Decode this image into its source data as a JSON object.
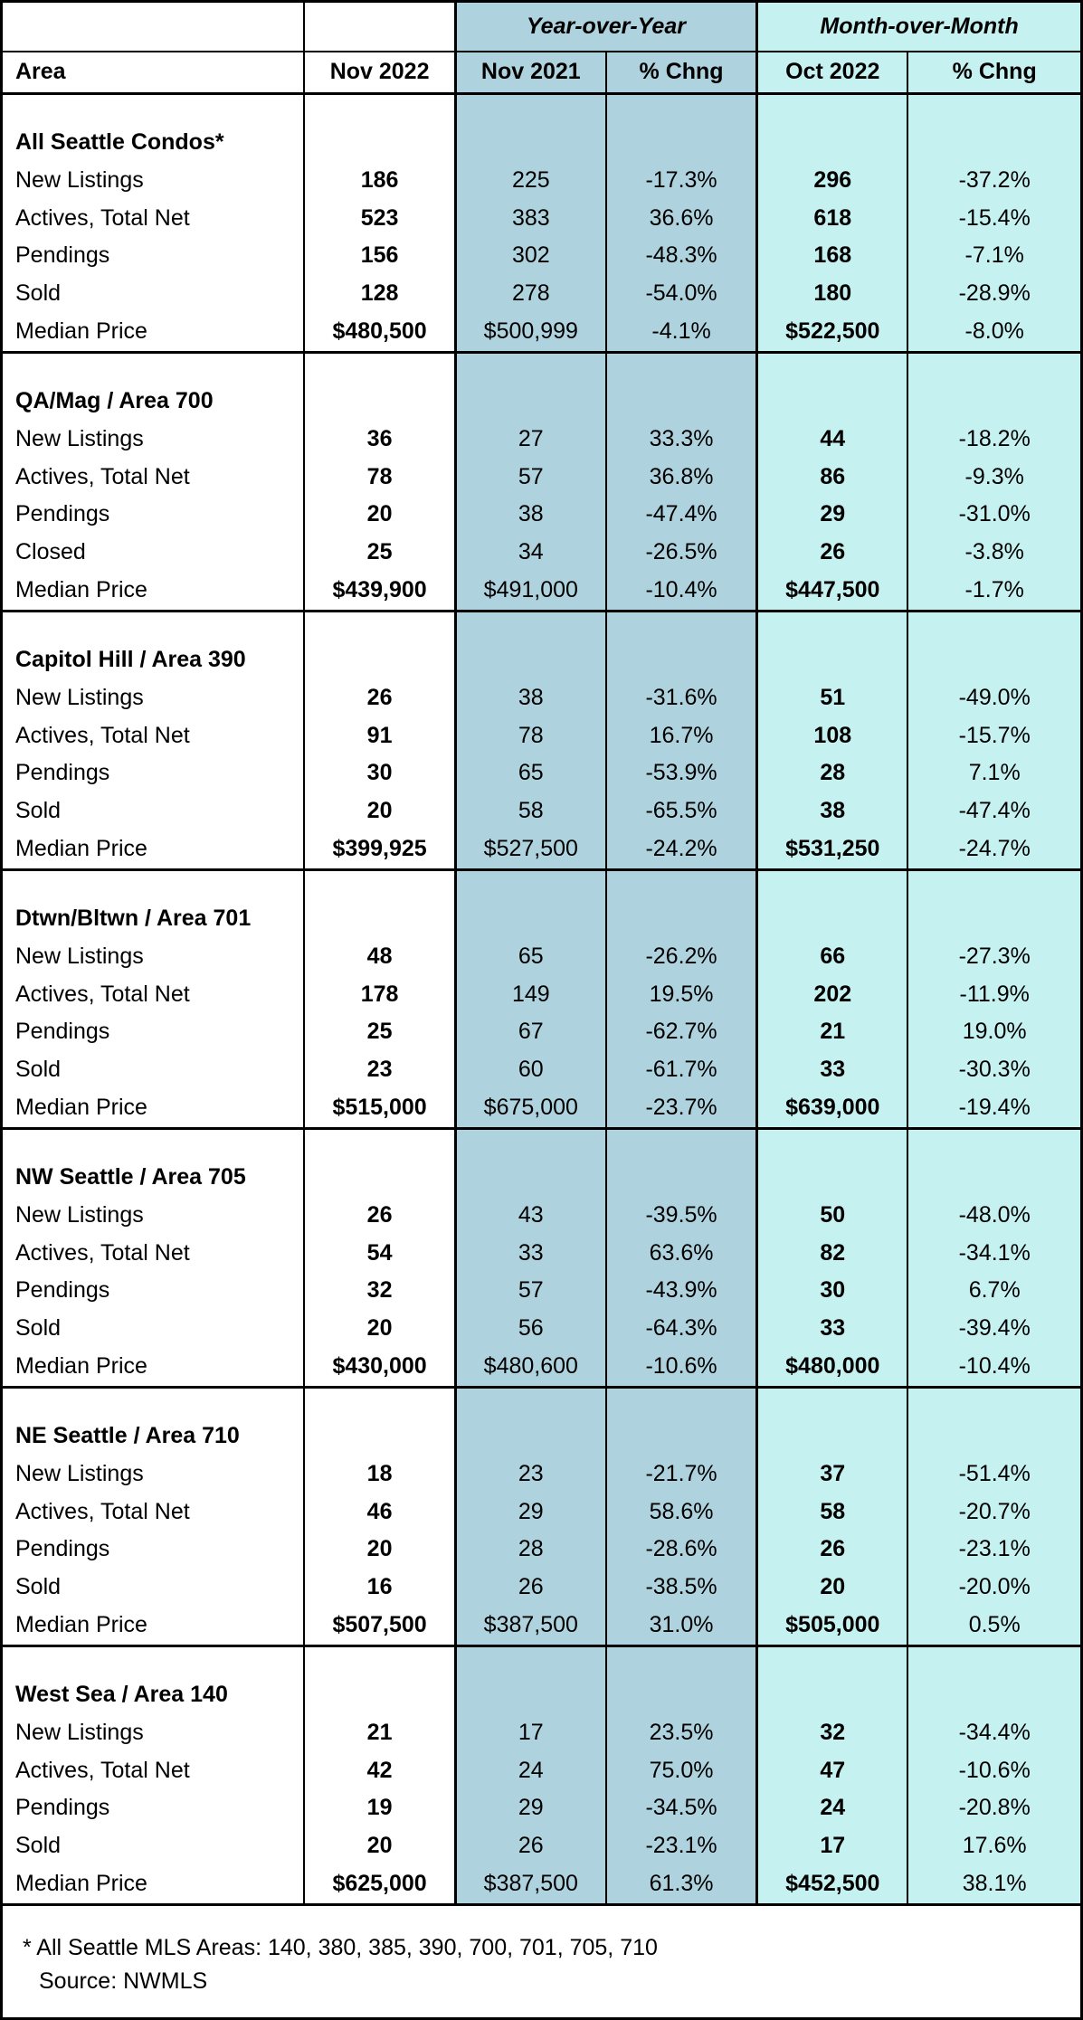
{
  "colors": {
    "yoy_bg": "#aed3de",
    "mom_bg": "#c6f1f1",
    "border": "#000000",
    "text": "#000000",
    "page_bg": "#ffffff"
  },
  "headers": {
    "yoy_group": "Year-over-Year",
    "mom_group": "Month-over-Month",
    "area": "Area",
    "nov2022": "Nov 2022",
    "nov2021": "Nov 2021",
    "pct_chng_yoy": "% Chng",
    "oct2022": "Oct 2022",
    "pct_chng_mom": "% Chng"
  },
  "sections": [
    {
      "title": "All Seattle Condos*",
      "rows": [
        {
          "label": "New Listings",
          "nov2022": "186",
          "nov2021": "225",
          "yoy": "-17.3%",
          "oct2022": "296",
          "mom": "-37.2%"
        },
        {
          "label": "Actives, Total Net",
          "nov2022": "523",
          "nov2021": "383",
          "yoy": "36.6%",
          "oct2022": "618",
          "mom": "-15.4%"
        },
        {
          "label": "Pendings",
          "nov2022": "156",
          "nov2021": "302",
          "yoy": "-48.3%",
          "oct2022": "168",
          "mom": "-7.1%"
        },
        {
          "label": "Sold",
          "nov2022": "128",
          "nov2021": "278",
          "yoy": "-54.0%",
          "oct2022": "180",
          "mom": "-28.9%"
        },
        {
          "label": "Median Price",
          "nov2022": "$480,500",
          "nov2021": "$500,999",
          "yoy": "-4.1%",
          "oct2022": "$522,500",
          "mom": "-8.0%"
        }
      ]
    },
    {
      "title": "QA/Mag  / Area 700",
      "rows": [
        {
          "label": "New Listings",
          "nov2022": "36",
          "nov2021": "27",
          "yoy": "33.3%",
          "oct2022": "44",
          "mom": "-18.2%"
        },
        {
          "label": "Actives, Total Net",
          "nov2022": "78",
          "nov2021": "57",
          "yoy": "36.8%",
          "oct2022": "86",
          "mom": "-9.3%"
        },
        {
          "label": "Pendings",
          "nov2022": "20",
          "nov2021": "38",
          "yoy": "-47.4%",
          "oct2022": "29",
          "mom": "-31.0%"
        },
        {
          "label": "Closed",
          "nov2022": "25",
          "nov2021": "34",
          "yoy": "-26.5%",
          "oct2022": "26",
          "mom": "-3.8%"
        },
        {
          "label": "Median Price",
          "nov2022": "$439,900",
          "nov2021": "$491,000",
          "yoy": "-10.4%",
          "oct2022": "$447,500",
          "mom": "-1.7%"
        }
      ]
    },
    {
      "title": "Capitol Hill / Area 390",
      "rows": [
        {
          "label": "New Listings",
          "nov2022": "26",
          "nov2021": "38",
          "yoy": "-31.6%",
          "oct2022": "51",
          "mom": "-49.0%"
        },
        {
          "label": "Actives, Total Net",
          "nov2022": "91",
          "nov2021": "78",
          "yoy": "16.7%",
          "oct2022": "108",
          "mom": "-15.7%"
        },
        {
          "label": "Pendings",
          "nov2022": "30",
          "nov2021": "65",
          "yoy": "-53.9%",
          "oct2022": "28",
          "mom": "7.1%"
        },
        {
          "label": "Sold",
          "nov2022": "20",
          "nov2021": "58",
          "yoy": "-65.5%",
          "oct2022": "38",
          "mom": "-47.4%"
        },
        {
          "label": "Median Price",
          "nov2022": "$399,925",
          "nov2021": "$527,500",
          "yoy": "-24.2%",
          "oct2022": "$531,250",
          "mom": "-24.7%"
        }
      ]
    },
    {
      "title": "Dtwn/Bltwn / Area 701",
      "rows": [
        {
          "label": "New Listings",
          "nov2022": "48",
          "nov2021": "65",
          "yoy": "-26.2%",
          "oct2022": "66",
          "mom": "-27.3%"
        },
        {
          "label": "Actives, Total Net",
          "nov2022": "178",
          "nov2021": "149",
          "yoy": "19.5%",
          "oct2022": "202",
          "mom": "-11.9%"
        },
        {
          "label": "Pendings",
          "nov2022": "25",
          "nov2021": "67",
          "yoy": "-62.7%",
          "oct2022": "21",
          "mom": "19.0%"
        },
        {
          "label": "Sold",
          "nov2022": "23",
          "nov2021": "60",
          "yoy": "-61.7%",
          "oct2022": "33",
          "mom": "-30.3%"
        },
        {
          "label": "Median Price",
          "nov2022": "$515,000",
          "nov2021": "$675,000",
          "yoy": "-23.7%",
          "oct2022": "$639,000",
          "mom": "-19.4%"
        }
      ]
    },
    {
      "title": "NW Seattle / Area 705",
      "rows": [
        {
          "label": "New Listings",
          "nov2022": "26",
          "nov2021": "43",
          "yoy": "-39.5%",
          "oct2022": "50",
          "mom": "-48.0%"
        },
        {
          "label": "Actives, Total Net",
          "nov2022": "54",
          "nov2021": "33",
          "yoy": "63.6%",
          "oct2022": "82",
          "mom": "-34.1%"
        },
        {
          "label": "Pendings",
          "nov2022": "32",
          "nov2021": "57",
          "yoy": "-43.9%",
          "oct2022": "30",
          "mom": "6.7%"
        },
        {
          "label": "Sold",
          "nov2022": "20",
          "nov2021": "56",
          "yoy": "-64.3%",
          "oct2022": "33",
          "mom": "-39.4%"
        },
        {
          "label": "Median Price",
          "nov2022": "$430,000",
          "nov2021": "$480,600",
          "yoy": "-10.6%",
          "oct2022": "$480,000",
          "mom": "-10.4%"
        }
      ]
    },
    {
      "title": "NE Seattle  / Area 710",
      "rows": [
        {
          "label": "New Listings",
          "nov2022": "18",
          "nov2021": "23",
          "yoy": "-21.7%",
          "oct2022": "37",
          "mom": "-51.4%"
        },
        {
          "label": "Actives, Total Net",
          "nov2022": "46",
          "nov2021": "29",
          "yoy": "58.6%",
          "oct2022": "58",
          "mom": "-20.7%"
        },
        {
          "label": "Pendings",
          "nov2022": "20",
          "nov2021": "28",
          "yoy": "-28.6%",
          "oct2022": "26",
          "mom": "-23.1%"
        },
        {
          "label": "Sold",
          "nov2022": "16",
          "nov2021": "26",
          "yoy": "-38.5%",
          "oct2022": "20",
          "mom": "-20.0%"
        },
        {
          "label": "Median Price",
          "nov2022": "$507,500",
          "nov2021": "$387,500",
          "yoy": "31.0%",
          "oct2022": "$505,000",
          "mom": "0.5%"
        }
      ]
    },
    {
      "title": "West Sea / Area 140",
      "rows": [
        {
          "label": "New Listings",
          "nov2022": "21",
          "nov2021": "17",
          "yoy": "23.5%",
          "oct2022": "32",
          "mom": "-34.4%"
        },
        {
          "label": "Actives, Total Net",
          "nov2022": "42",
          "nov2021": "24",
          "yoy": "75.0%",
          "oct2022": "47",
          "mom": "-10.6%"
        },
        {
          "label": "Pendings",
          "nov2022": "19",
          "nov2021": "29",
          "yoy": "-34.5%",
          "oct2022": "24",
          "mom": "-20.8%"
        },
        {
          "label": "Sold",
          "nov2022": "20",
          "nov2021": "26",
          "yoy": "-23.1%",
          "oct2022": "17",
          "mom": "17.6%"
        },
        {
          "label": "Median Price",
          "nov2022": "$625,000",
          "nov2021": "$387,500",
          "yoy": "61.3%",
          "oct2022": "$452,500",
          "mom": "38.1%"
        }
      ]
    }
  ],
  "footer": {
    "note": "*  All Seattle MLS Areas: 140, 380, 385, 390, 700, 701, 705, 710",
    "source": "Source: NWMLS"
  }
}
